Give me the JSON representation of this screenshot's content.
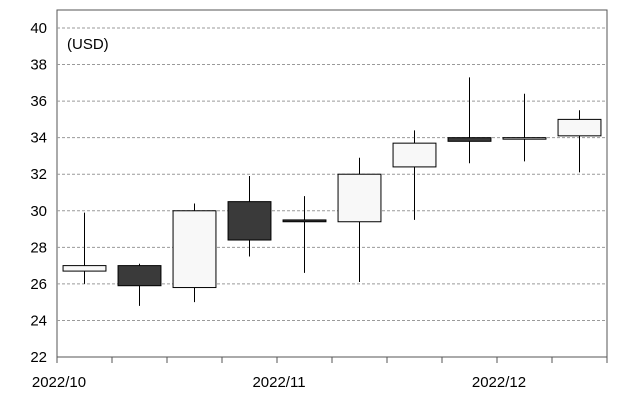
{
  "chart_data": {
    "type": "candlestick",
    "unit_label": "(USD)",
    "ylim": [
      22,
      40
    ],
    "y_ticks": [
      22,
      24,
      26,
      28,
      30,
      32,
      34,
      36,
      38,
      40
    ],
    "grid": true,
    "x_tick_labels": [
      "2022/10",
      "2022/11",
      "2022/12"
    ],
    "colors": {
      "up": "#f8f8f8",
      "down": "#3a3a3a",
      "outline": "#000000",
      "grid": "#9a9a9a"
    },
    "candles": [
      {
        "open": 26.7,
        "close": 27.0,
        "high": 29.9,
        "low": 26.0
      },
      {
        "open": 27.0,
        "close": 25.9,
        "high": 27.1,
        "low": 24.8
      },
      {
        "open": 25.8,
        "close": 30.0,
        "high": 30.4,
        "low": 25.0
      },
      {
        "open": 30.5,
        "close": 28.4,
        "high": 31.9,
        "low": 27.5
      },
      {
        "open": 29.5,
        "close": 29.4,
        "high": 30.8,
        "low": 26.6
      },
      {
        "open": 29.4,
        "close": 32.0,
        "high": 32.9,
        "low": 26.1
      },
      {
        "open": 32.4,
        "close": 33.7,
        "high": 34.4,
        "low": 29.5
      },
      {
        "open": 34.0,
        "close": 33.8,
        "high": 37.3,
        "low": 32.6
      },
      {
        "open": 34.0,
        "close": 34.0,
        "high": 36.4,
        "low": 32.7
      },
      {
        "open": 34.1,
        "close": 35.0,
        "high": 35.5,
        "low": 32.1
      }
    ]
  }
}
